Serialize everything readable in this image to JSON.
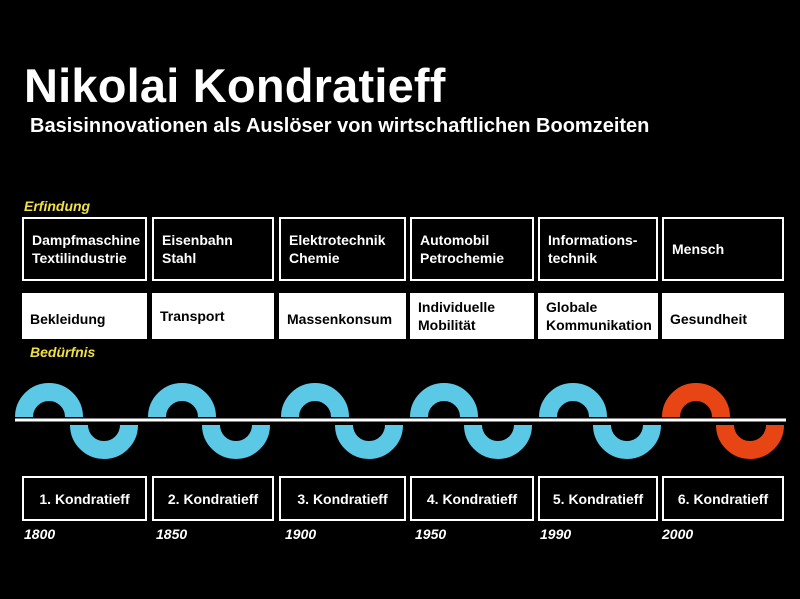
{
  "title": "Nikolai Kondratieff",
  "subtitle": "Basisinnovationen als Auslöser von wirtschaftlichen Boomzeiten",
  "labels": {
    "erfindung": "Erfindung",
    "beduerfnis": "Bedürfnis"
  },
  "inventions": [
    "Dampfmaschine\nTextilindustrie",
    "Eisenbahn\nStahl",
    "Elektrotechnik\nChemie",
    "Automobil\nPetrochemie",
    "Informations-\ntechnik",
    "Mensch"
  ],
  "needs": [
    "Bekleidung",
    "Transport",
    "Massenkonsum",
    "Individuelle\nMobilität",
    "Globale\nKommunikation",
    "Gesundheit"
  ],
  "cycles": [
    "1. Kondratieff",
    "2. Kondratieff",
    "3. Kondratieff",
    "4. Kondratieff",
    "5. Kondratieff",
    "6. Kondratieff"
  ],
  "years": [
    "1800",
    "1850",
    "1900",
    "1950",
    "1990",
    "2000"
  ],
  "colors": {
    "wave_past": "#5bc8e6",
    "wave_future": "#e84515",
    "highlight": "#f0e040"
  }
}
